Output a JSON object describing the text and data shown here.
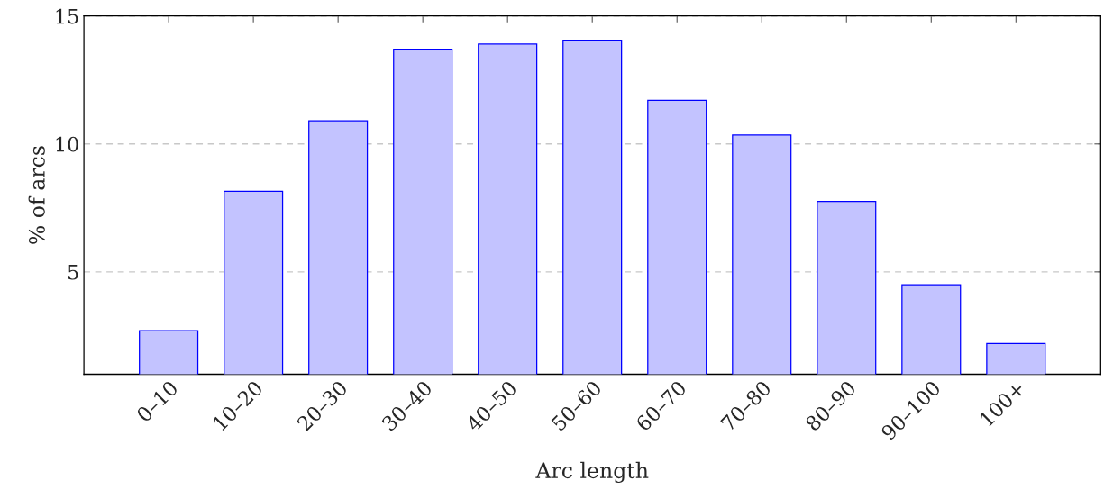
{
  "chart_data": {
    "type": "bar",
    "xlabel": "Arc length",
    "ylabel": "% of arcs",
    "categories": [
      "0–10",
      "10–20",
      "20–30",
      "30–40",
      "40–50",
      "50–60",
      "60–70",
      "70–80",
      "80–90",
      "90–100",
      "100+"
    ],
    "values": [
      2.7,
      8.15,
      10.9,
      13.7,
      13.9,
      14.05,
      11.7,
      10.35,
      7.75,
      4.5,
      2.2
    ],
    "color": "#c3c3ff",
    "ylim": [
      1,
      15
    ],
    "yticks": [
      5,
      10,
      15
    ],
    "grid": "y"
  }
}
